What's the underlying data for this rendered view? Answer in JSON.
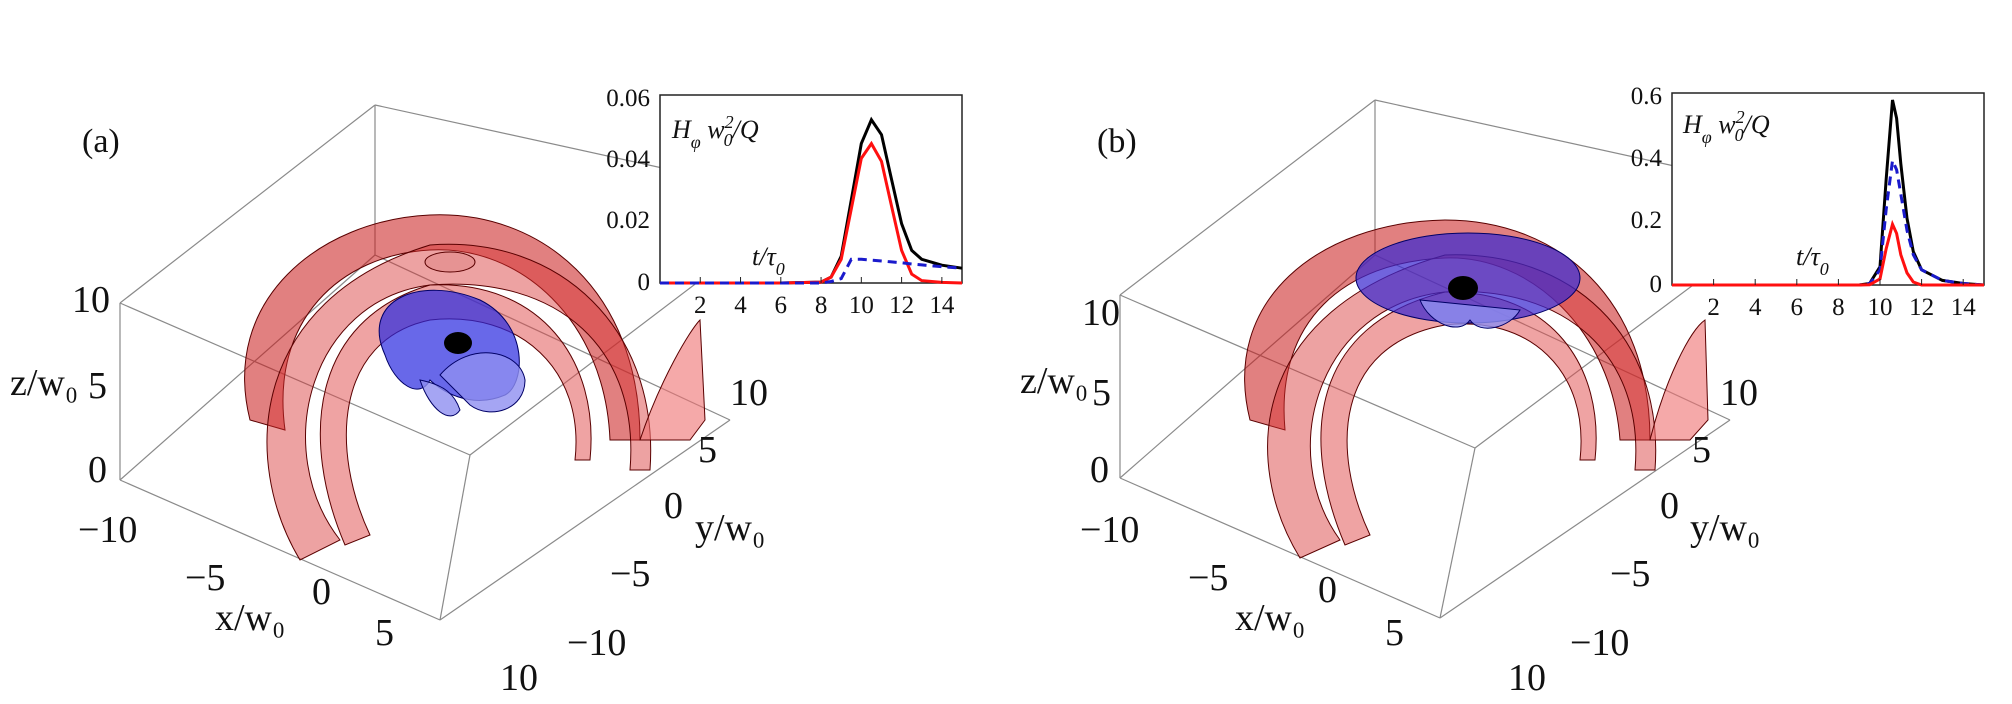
{
  "panels": [
    {
      "id": "a",
      "label": "(a)",
      "axes3d": {
        "x_label": "x/w₀",
        "y_label": "y/w₀",
        "z_label": "z/w₀",
        "x_ticks": [
          "−10",
          "−5",
          "0",
          "5",
          "10"
        ],
        "y_ticks": [
          "10",
          "5",
          "0",
          "−5",
          "−10"
        ],
        "z_ticks": [
          "10",
          "5",
          "0"
        ]
      },
      "inset": {
        "ylabel_main": "H",
        "ylabel_sub": "φ",
        "ylabel_rest": " w",
        "ylabel_sup": "2",
        "ylabel_sub2": "0",
        "ylabel_tail": "/Q",
        "xlabel_main": "t/τ",
        "xlabel_sub": "0",
        "y_ticks": [
          "0.06",
          "0.04",
          "0.02",
          "0"
        ],
        "x_ticks": [
          "2",
          "4",
          "6",
          "8",
          "10",
          "12",
          "14"
        ]
      }
    },
    {
      "id": "b",
      "label": "(b)",
      "axes3d": {
        "x_label": "x/w₀",
        "y_label": "y/w₀",
        "z_label": "z/w₀",
        "x_ticks": [
          "−10",
          "−5",
          "0",
          "5",
          "10"
        ],
        "y_ticks": [
          "10",
          "5",
          "0",
          "−5",
          "−10"
        ],
        "z_ticks": [
          "10",
          "5",
          "0"
        ]
      },
      "inset": {
        "ylabel_main": "H",
        "ylabel_sub": "φ",
        "ylabel_rest": " w",
        "ylabel_sup": "2",
        "ylabel_sub2": "0",
        "ylabel_tail": "/Q",
        "xlabel_main": "t/τ",
        "xlabel_sub": "0",
        "y_ticks": [
          "0.6",
          "0.4",
          "0.2",
          "0"
        ],
        "x_ticks": [
          "2",
          "4",
          "6",
          "8",
          "10",
          "12",
          "14"
        ]
      }
    }
  ],
  "colors": {
    "shell_red": "#d42020",
    "lobe_blue": "#3232e0",
    "black_curve": "#000000",
    "red_curve": "#ff1010",
    "blue_curve": "#1a1acc",
    "box": "#8a8a8a"
  },
  "chart_data": [
    {
      "type": "line",
      "panel": "a",
      "x": [
        0,
        2,
        4,
        6,
        8,
        8.5,
        9,
        9.5,
        10,
        10.5,
        11,
        11.5,
        12,
        12.5,
        13,
        14,
        15
      ],
      "xlim": [
        0,
        15
      ],
      "ylim": [
        0,
        0.06
      ],
      "series": [
        {
          "color": "#000000",
          "style": "solid",
          "values": [
            0,
            0,
            0,
            0,
            0.0003,
            0.002,
            0.009,
            0.028,
            0.047,
            0.055,
            0.05,
            0.035,
            0.02,
            0.011,
            0.008,
            0.006,
            0.005
          ]
        },
        {
          "color": "#ff1010",
          "style": "solid",
          "values": [
            0,
            0,
            0,
            0,
            0.0003,
            0.002,
            0.008,
            0.025,
            0.042,
            0.047,
            0.041,
            0.026,
            0.011,
            0.003,
            0.0008,
            0.0002,
            0
          ]
        },
        {
          "color": "#1a1acc",
          "style": "dashed",
          "values": [
            0,
            0,
            0,
            0,
            0,
            0.0005,
            0.0015,
            0.008,
            0.008,
            0.0077,
            0.0074,
            0.0071,
            0.0068,
            0.0064,
            0.0061,
            0.0055,
            0.005
          ]
        }
      ]
    },
    {
      "type": "line",
      "panel": "b",
      "x": [
        0,
        2,
        4,
        6,
        8,
        9,
        9.5,
        10,
        10.3,
        10.6,
        10.8,
        11,
        11.3,
        11.6,
        12,
        13,
        14,
        15
      ],
      "xlim": [
        0,
        15
      ],
      "ylim": [
        0,
        0.6
      ],
      "series": [
        {
          "color": "#000000",
          "style": "solid",
          "values": [
            0,
            0,
            0,
            0,
            0,
            0,
            0.005,
            0.06,
            0.35,
            0.61,
            0.55,
            0.4,
            0.22,
            0.11,
            0.05,
            0.015,
            0.005,
            0
          ]
        },
        {
          "color": "#1a1acc",
          "style": "dashed",
          "values": [
            0,
            0,
            0,
            0,
            0,
            0,
            0.004,
            0.05,
            0.25,
            0.41,
            0.38,
            0.3,
            0.18,
            0.1,
            0.05,
            0.015,
            0.005,
            0
          ]
        },
        {
          "color": "#ff1010",
          "style": "solid",
          "values": [
            0,
            0,
            0,
            0,
            0,
            0,
            0.001,
            0.02,
            0.12,
            0.2,
            0.17,
            0.1,
            0.04,
            0.01,
            0,
            0,
            0,
            0
          ]
        }
      ]
    }
  ]
}
